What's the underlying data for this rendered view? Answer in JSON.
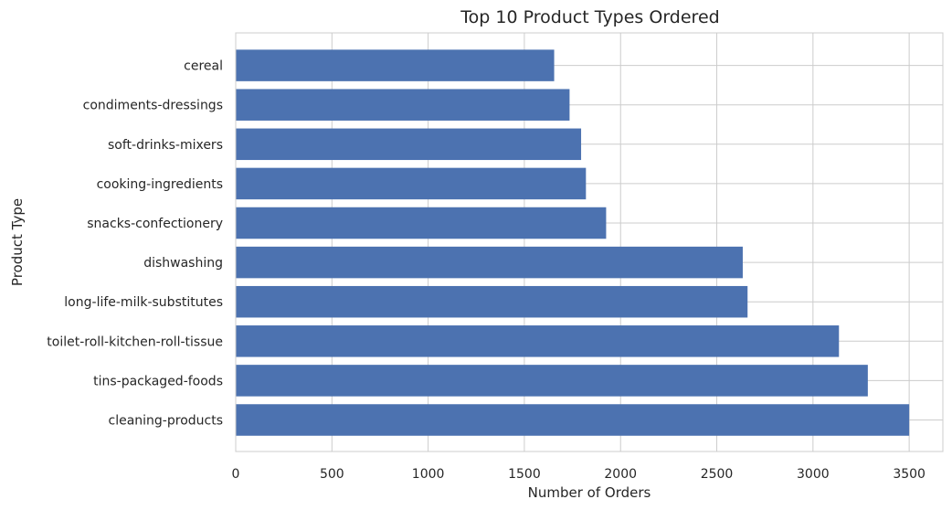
{
  "chart_data": {
    "type": "bar",
    "orientation": "horizontal",
    "title": "Top 10 Product Types Ordered",
    "xlabel": "Number of Orders",
    "ylabel": "Product Type",
    "categories": [
      "cleaning-products",
      "tins-packaged-foods",
      "toilet-roll-kitchen-roll-tissue",
      "long-life-milk-substitutes",
      "dishwashing",
      "snacks-confectionery",
      "cooking-ingredients",
      "soft-drinks-mixers",
      "condiments-dressings",
      "cereal"
    ],
    "values": [
      3500,
      3285,
      3135,
      2660,
      2635,
      1925,
      1820,
      1795,
      1735,
      1655
    ],
    "xlim": [
      0,
      3675
    ],
    "xticks": [
      0,
      500,
      1000,
      1500,
      2000,
      2500,
      3000,
      3500
    ],
    "grid": true,
    "bar_color": "#4c72b0",
    "grid_color": "#cccccc"
  }
}
